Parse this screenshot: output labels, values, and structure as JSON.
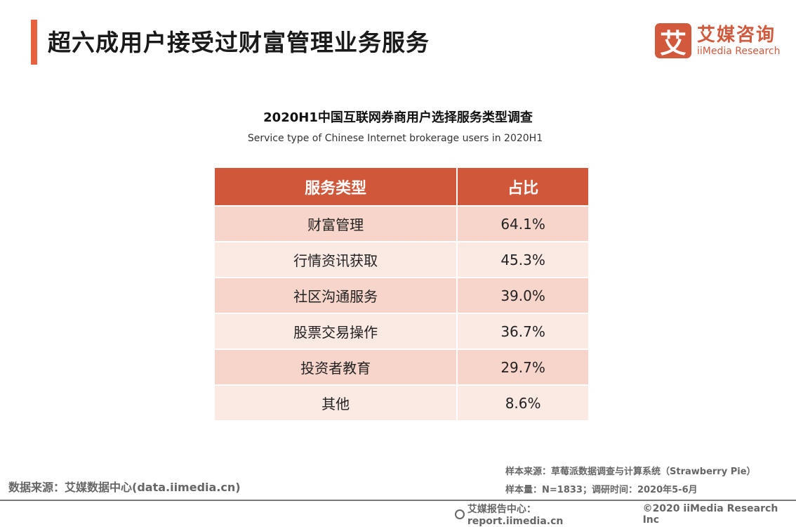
{
  "header": {
    "title": "超六成用户接受过财富管理业务服务"
  },
  "logo": {
    "mark": "艾",
    "name_cn": "艾媒咨询",
    "name_en": "iiMedia Research",
    "brand_color": "#d2593c"
  },
  "main": {
    "title": "2020H1中国互联网券商用户选择服务类型调查",
    "subtitle": "Service type of Chinese Internet brokerage users in 2020H1",
    "table": {
      "columns": [
        "服务类型",
        "占比"
      ],
      "rows": [
        [
          "财富管理",
          "64.1%"
        ],
        [
          "行情资讯获取",
          "45.3%"
        ],
        [
          "社区沟通服务",
          "39.0%"
        ],
        [
          "股票交易操作",
          "36.7%"
        ],
        [
          "投资者教育",
          "29.7%"
        ],
        [
          "其他",
          "8.6%"
        ]
      ],
      "header_color": "#d0573a",
      "row_colors": [
        "#f7d5cb",
        "#fbe9e4"
      ]
    }
  },
  "footer": {
    "source": "数据来源：艾媒数据中心(data.iimedia.cn)",
    "sample_source": "样本来源：草莓派数据调查与计算系统（Strawberry Pie）",
    "sample_size": "样本量：N=1833；调研时间：2020年5-6月",
    "report_center": "艾媒报告中心：report.iimedia.cn",
    "copyright": "©2020  iiMedia Research  Inc"
  }
}
